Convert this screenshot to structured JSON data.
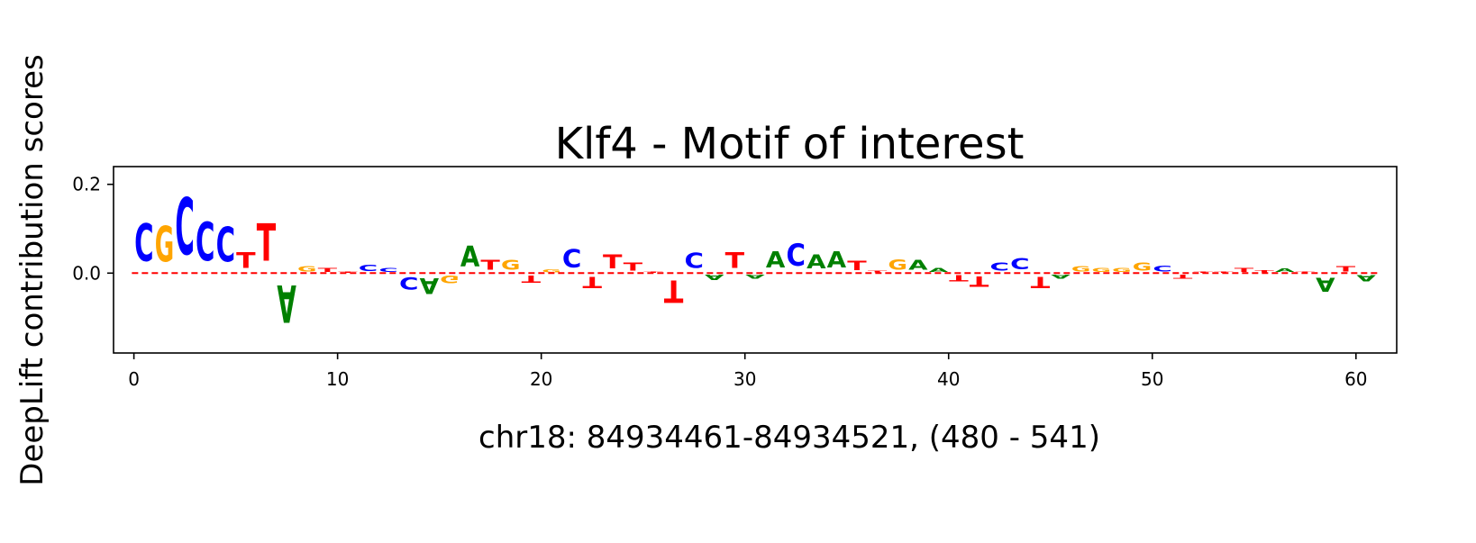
{
  "chart_data": {
    "type": "sequence-logo",
    "title": "Klf4 - Motif of interest",
    "xlabel": "chr18: 84934461-84934521, (480 - 541)",
    "ylabel": "DeepLift contribution scores",
    "xlim": [
      -1,
      62
    ],
    "ylim": [
      -0.18,
      0.24
    ],
    "xticks": [
      0,
      10,
      20,
      30,
      40,
      50,
      60
    ],
    "yticks": [
      0.0,
      0.2
    ],
    "ytick_labels": [
      "0.0",
      "0.2"
    ],
    "baseline": 0,
    "colors": {
      "A": "#008000",
      "C": "#0000ff",
      "G": "#ffa500",
      "T": "#ff0000"
    },
    "bases": [
      "C",
      "G",
      "C",
      "C",
      "C",
      "T",
      "T",
      "A",
      "G",
      "T",
      "T",
      "C",
      "C",
      "C",
      "A",
      "G",
      "A",
      "T",
      "G",
      "T",
      "G",
      "C",
      "T",
      "T",
      "T",
      "T",
      "T",
      "C",
      "A",
      "T",
      "A",
      "A",
      "C",
      "A",
      "A",
      "T",
      "T",
      "G",
      "A",
      "A",
      "T",
      "T",
      "C",
      "C",
      "T",
      "A",
      "G",
      "G",
      "G",
      "G",
      "C",
      "T",
      "T",
      "T",
      "T",
      "T",
      "A",
      "T",
      "A",
      "T",
      "A"
    ],
    "scores": [
      0.135,
      0.13,
      0.205,
      0.14,
      0.125,
      0.058,
      0.135,
      -0.135,
      0.018,
      0.014,
      0.004,
      0.022,
      0.014,
      -0.045,
      -0.058,
      -0.028,
      0.075,
      0.035,
      0.035,
      -0.025,
      0.01,
      0.065,
      -0.04,
      0.05,
      0.03,
      0.003,
      -0.08,
      0.055,
      -0.018,
      0.058,
      -0.015,
      0.06,
      0.08,
      0.05,
      0.06,
      0.033,
      0.006,
      0.038,
      0.035,
      0.015,
      -0.022,
      -0.038,
      0.03,
      0.04,
      -0.04,
      -0.015,
      0.018,
      0.015,
      0.015,
      0.03,
      0.02,
      -0.015,
      0.005,
      0.003,
      0.015,
      0.008,
      0.012,
      0.003,
      -0.05,
      0.018,
      -0.022
    ]
  }
}
